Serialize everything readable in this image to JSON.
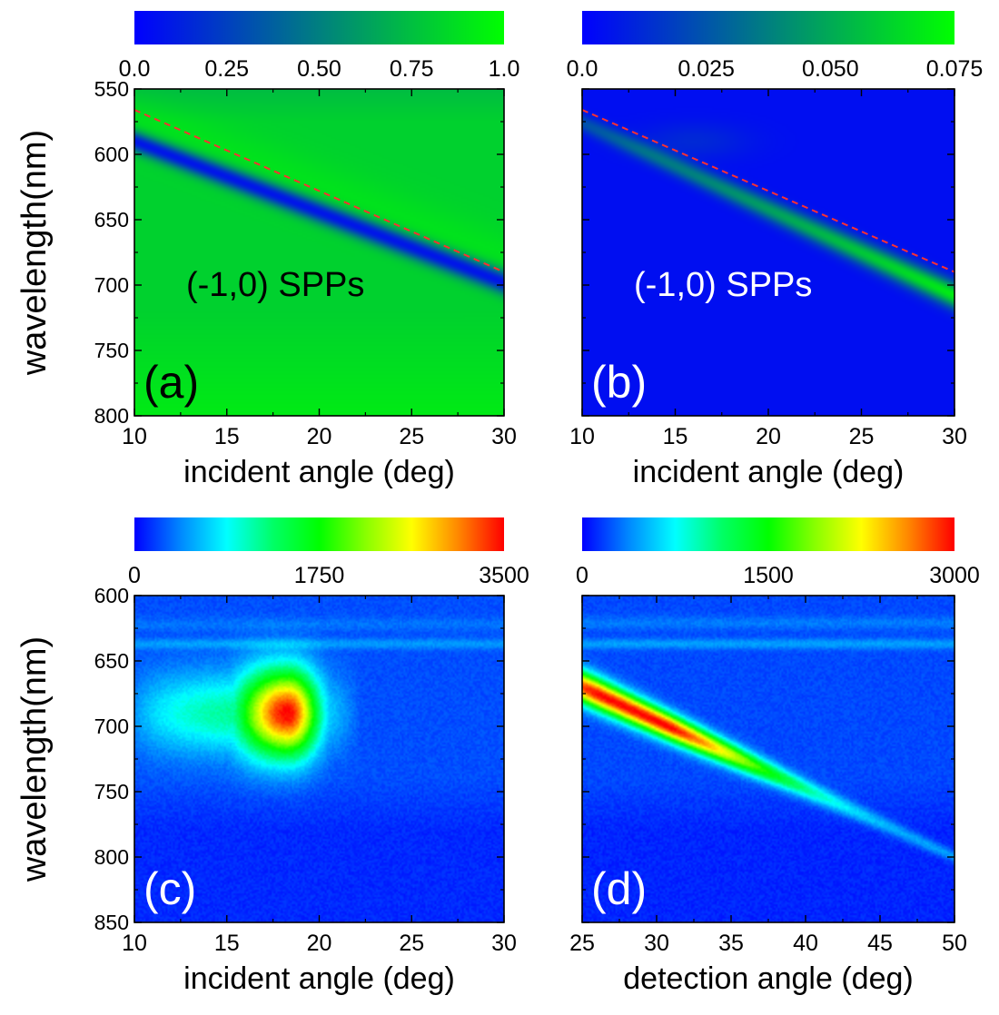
{
  "colors": {
    "blue_green_map": [
      "#0000ff",
      "#00ff00"
    ],
    "rainbow_map": [
      "#0000ff",
      "#0088ff",
      "#00ffff",
      "#00ff66",
      "#00ff00",
      "#88ff00",
      "#ffff00",
      "#ff8800",
      "#ff0000"
    ],
    "dispersion_line": "#ff3030"
  },
  "chart_data": [
    {
      "id": "a",
      "type": "heatmap",
      "panel_label": "(a)",
      "annotation": "(-1,0) SPPs",
      "xlabel": "incident angle (deg)",
      "ylabel": "wavelength(nm)",
      "xlim": [
        10,
        30
      ],
      "ylim": [
        550,
        800
      ],
      "y_inverted": true,
      "xticks": [
        "10",
        "15",
        "20",
        "25",
        "30"
      ],
      "yticks": [
        "550",
        "600",
        "650",
        "700",
        "750",
        "800"
      ],
      "colorbar": {
        "min": 0.0,
        "max": 1.0,
        "ticks": [
          "0.0",
          "0.25",
          "0.50",
          "0.75",
          "1.0"
        ],
        "colormap": "blue_green_map"
      },
      "dashed_line": {
        "x": [
          10,
          30
        ],
        "y": [
          566,
          690
        ]
      },
      "feature": {
        "kind": "dip",
        "base_value": 0.82,
        "feature_value": 0.05,
        "x": [
          10,
          30
        ],
        "y": [
          590,
          698
        ]
      }
    },
    {
      "id": "b",
      "type": "heatmap",
      "panel_label": "(b)",
      "annotation": "(-1,0) SPPs",
      "xlabel": "incident angle (deg)",
      "ylabel": "",
      "xlim": [
        10,
        30
      ],
      "ylim": [
        550,
        800
      ],
      "y_inverted": true,
      "xticks": [
        "10",
        "15",
        "20",
        "25",
        "30"
      ],
      "yticks": [],
      "colorbar": {
        "min": 0.0,
        "max": 0.075,
        "ticks": [
          "0.0",
          "0.025",
          "0.050",
          "0.075"
        ],
        "colormap": "blue_green_map"
      },
      "dashed_line": {
        "x": [
          10,
          30
        ],
        "y": [
          566,
          690
        ]
      },
      "feature": {
        "kind": "peak",
        "base_value": 0.004,
        "feature_value": 0.07,
        "x": [
          10,
          30
        ],
        "y": [
          566,
          698
        ]
      }
    },
    {
      "id": "c",
      "type": "heatmap",
      "panel_label": "(c)",
      "xlabel": "incident angle (deg)",
      "ylabel": "wavelength(nm)",
      "xlim": [
        10,
        30
      ],
      "ylim": [
        600,
        850
      ],
      "y_inverted": true,
      "xticks": [
        "10",
        "15",
        "20",
        "25",
        "30"
      ],
      "yticks": [
        "600",
        "650",
        "700",
        "750",
        "800",
        "850"
      ],
      "colorbar": {
        "min": 0,
        "max": 3500,
        "ticks": [
          "0",
          "1750",
          "3500"
        ],
        "colormap": "rainbow_map"
      },
      "feature": {
        "kind": "spot",
        "peak_value": 3500,
        "peak_x": 18.3,
        "peak_y": 690,
        "base_value": 250
      }
    },
    {
      "id": "d",
      "type": "heatmap",
      "panel_label": "(d)",
      "xlabel": "detection angle (deg)",
      "ylabel": "",
      "xlim": [
        25,
        50
      ],
      "ylim": [
        600,
        850
      ],
      "y_inverted": true,
      "xticks": [
        "25",
        "30",
        "35",
        "40",
        "45",
        "50"
      ],
      "yticks": [],
      "colorbar": {
        "min": 0,
        "max": 3000,
        "ticks": [
          "0",
          "1500",
          "3000"
        ],
        "colormap": "rainbow_map"
      },
      "feature": {
        "kind": "streak",
        "peak_value": 3000,
        "peak_x": 28.5,
        "x": [
          25,
          40,
          50
        ],
        "y": [
          670,
          748,
          800
        ],
        "base_value": 200
      }
    }
  ]
}
